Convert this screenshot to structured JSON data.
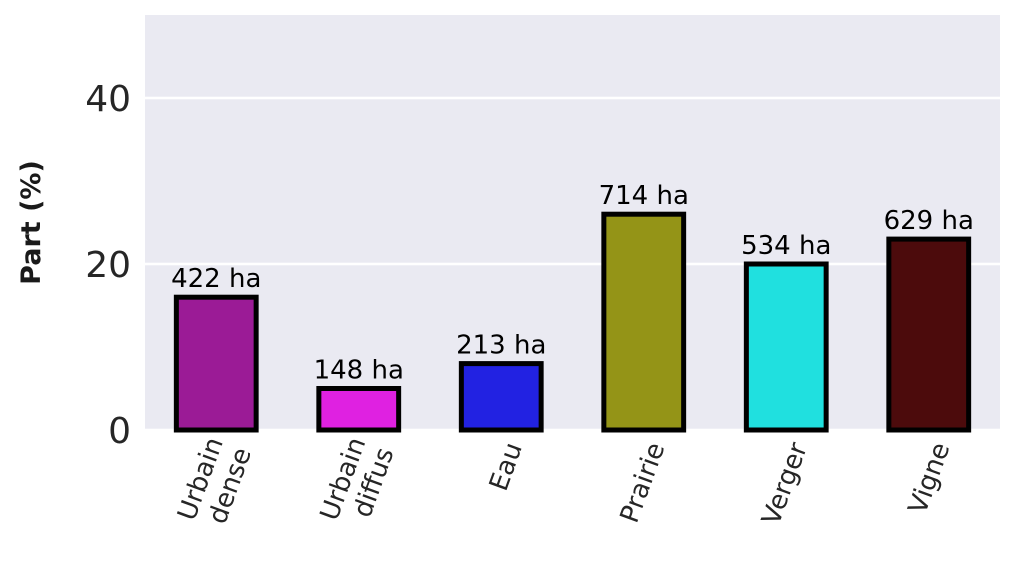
{
  "chart_data": {
    "type": "bar",
    "title": "",
    "xlabel": "",
    "ylabel": "Part (%)",
    "ylim": [
      0,
      50
    ],
    "yticks": [
      0,
      20,
      40
    ],
    "grid": true,
    "categories": [
      [
        "Urbain",
        "dense"
      ],
      [
        "Urbain",
        "diffus"
      ],
      [
        "Eau"
      ],
      [
        "Prairie"
      ],
      [
        "Verger"
      ],
      [
        "Vigne"
      ]
    ],
    "values": [
      16,
      5,
      8,
      26,
      20,
      23
    ],
    "labels": [
      "422 ha",
      "148 ha",
      "213 ha",
      "714 ha",
      "534 ha",
      "629 ha"
    ],
    "colors": [
      "#9b1b96",
      "#df21e1",
      "#2222e2",
      "#949417",
      "#20e0df",
      "#4c0b0c"
    ],
    "plot_background": "#eaeaf2",
    "grid_color": "#ffffff",
    "edge_color": "#000000"
  }
}
